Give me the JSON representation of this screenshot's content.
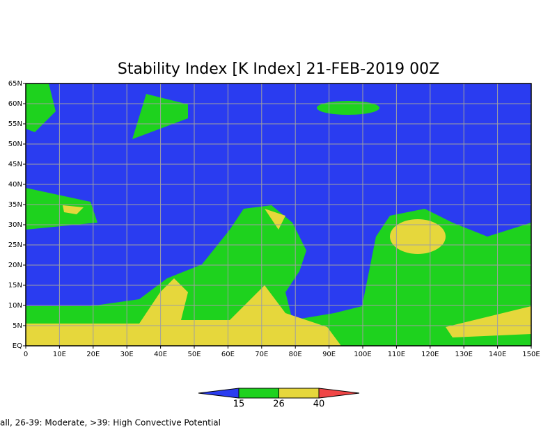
{
  "chart_data": {
    "type": "map",
    "title": "Stability Index [K Index] 21-FEB-2019 00Z",
    "xlim": [
      0,
      150
    ],
    "ylim": [
      0,
      65
    ],
    "xticks": [
      0,
      {
        "value": 10,
        "label": "10E"
      },
      {
        "value": 20,
        "label": "20E"
      },
      {
        "value": 30,
        "label": "30E"
      },
      {
        "value": 40,
        "label": "40E"
      },
      {
        "value": 50,
        "label": "50E"
      },
      {
        "value": 60,
        "label": "60E"
      },
      {
        "value": 70,
        "label": "70E"
      },
      {
        "value": 80,
        "label": "80E"
      },
      {
        "value": 90,
        "label": "90E"
      },
      {
        "value": 100,
        "label": "100E"
      },
      {
        "value": 110,
        "label": "110E"
      },
      {
        "value": 120,
        "label": "120E"
      },
      {
        "value": 130,
        "label": "130E"
      },
      {
        "value": 140,
        "label": "140E"
      },
      {
        "value": 150,
        "label": "150E"
      }
    ],
    "yticks": [
      {
        "value": 0,
        "label": "EQ"
      },
      {
        "value": 5,
        "label": "5N"
      },
      {
        "value": 10,
        "label": "10N"
      },
      {
        "value": 15,
        "label": "15N"
      },
      {
        "value": 20,
        "label": "20N"
      },
      {
        "value": 25,
        "label": "25N"
      },
      {
        "value": 30,
        "label": "30N"
      },
      {
        "value": 35,
        "label": "35N"
      },
      {
        "value": 40,
        "label": "40N"
      },
      {
        "value": 45,
        "label": "45N"
      },
      {
        "value": 50,
        "label": "50N"
      },
      {
        "value": 55,
        "label": "55N"
      },
      {
        "value": 60,
        "label": "60N"
      },
      {
        "value": 65,
        "label": "65N"
      }
    ],
    "grid": true,
    "colorbar": {
      "ticks": [
        15,
        26,
        40
      ],
      "colors": [
        "#2a3cf0",
        "#1ed21e",
        "#e6d73c",
        "#f04646"
      ]
    },
    "caption": "all, 26-39: Moderate, >39: High Convective Potential"
  }
}
